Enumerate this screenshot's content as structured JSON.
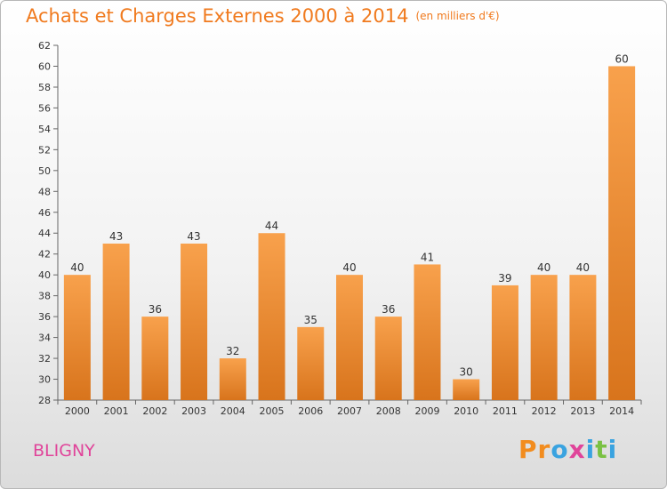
{
  "header": {
    "title": "Achats et Charges Externes 2000 à 2014",
    "unit": "(en milliers d'€)"
  },
  "footer": {
    "town": "BLIGNY",
    "logo": [
      "P",
      "r",
      "o",
      "x",
      "i",
      "t",
      "i"
    ],
    "logo_colors": [
      "#f28c1e",
      "#f28c1e",
      "#3aa3e0",
      "#e0449a",
      "#3aa3e0",
      "#7ac143",
      "#3aa3e0"
    ]
  },
  "colors": {
    "bar_light": "#f8a14c",
    "bar_dark": "#d8741c",
    "title": "#f07a1e",
    "town": "#e0449a"
  },
  "chart_data": {
    "type": "bar",
    "title": "Achats et Charges Externes 2000 à 2014",
    "categories": [
      "2000",
      "2001",
      "2002",
      "2003",
      "2004",
      "2005",
      "2006",
      "2007",
      "2008",
      "2009",
      "2010",
      "2011",
      "2012",
      "2013",
      "2014"
    ],
    "values": [
      40,
      43,
      36,
      43,
      32,
      44,
      35,
      40,
      36,
      41,
      30,
      39,
      40,
      40,
      60
    ],
    "ylim": [
      28,
      62
    ],
    "yticks": [
      28,
      30,
      32,
      34,
      36,
      38,
      40,
      42,
      44,
      46,
      48,
      50,
      52,
      54,
      56,
      58,
      60,
      62
    ],
    "grid": false,
    "legend": "none"
  }
}
